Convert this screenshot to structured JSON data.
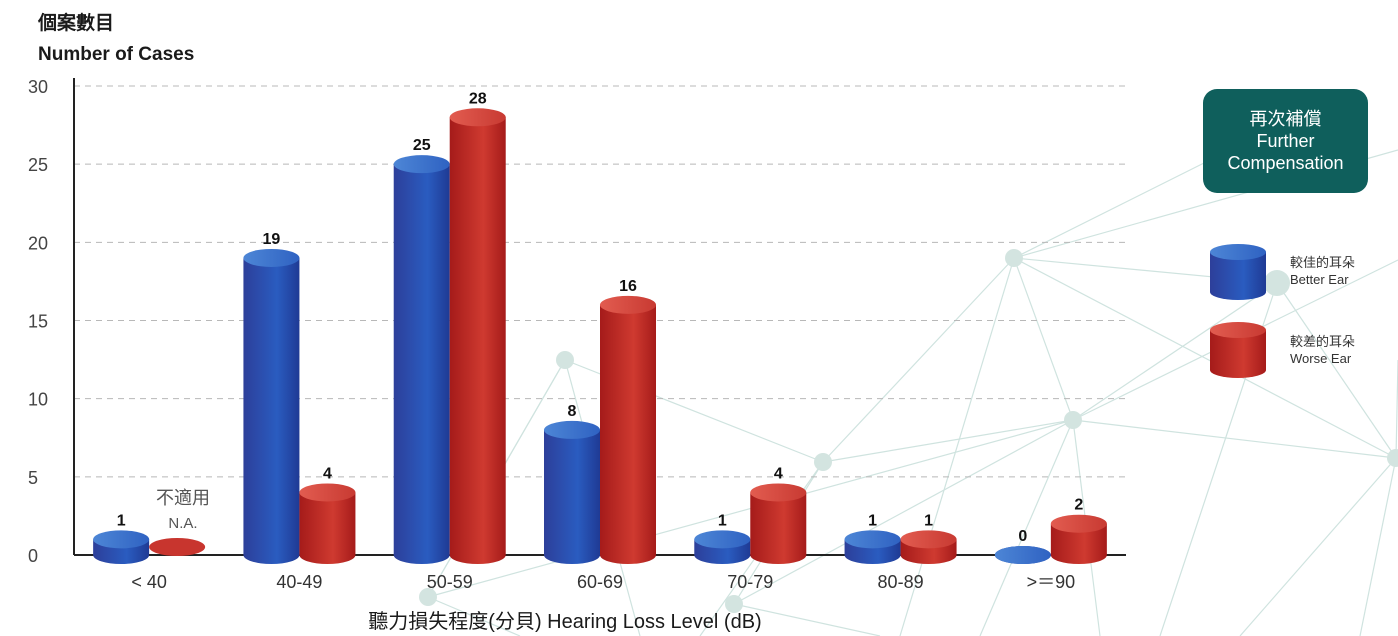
{
  "y_title_cn": "個案數目",
  "y_title_en": "Number of Cases",
  "x_title": "聽力損失程度(分貝) Hearing Loss Level (dB)",
  "badge": {
    "cn": "再次補償",
    "en1": "Further",
    "en2": "Compensation"
  },
  "legend": [
    {
      "cn": "較佳的耳朵",
      "en": "Better Ear",
      "color": "#2a56b4"
    },
    {
      "cn": "較差的耳朵",
      "en": "Worse Ear",
      "color": "#c4302a"
    }
  ],
  "na_label": {
    "cn": "不適用",
    "en": "N.A."
  },
  "chart_data": {
    "type": "bar",
    "categories": [
      "< 40",
      "40-49",
      "50-59",
      "60-69",
      "70-79",
      "80-89",
      ">＝90"
    ],
    "series": [
      {
        "name": "Better Ear",
        "values": [
          1,
          19,
          25,
          8,
          1,
          1,
          0
        ],
        "labels": [
          "1",
          "19",
          "25",
          "8",
          "1",
          "1",
          "0"
        ]
      },
      {
        "name": "Worse Ear",
        "values": [
          null,
          4,
          28,
          16,
          4,
          1,
          2
        ],
        "labels": [
          "",
          "4",
          "28",
          "16",
          "4",
          "1",
          "2"
        ]
      }
    ],
    "yticks": [
      0,
      5,
      10,
      15,
      20,
      25,
      30
    ],
    "ylim": [
      0,
      30
    ],
    "grid": true,
    "legend_position": "right"
  }
}
